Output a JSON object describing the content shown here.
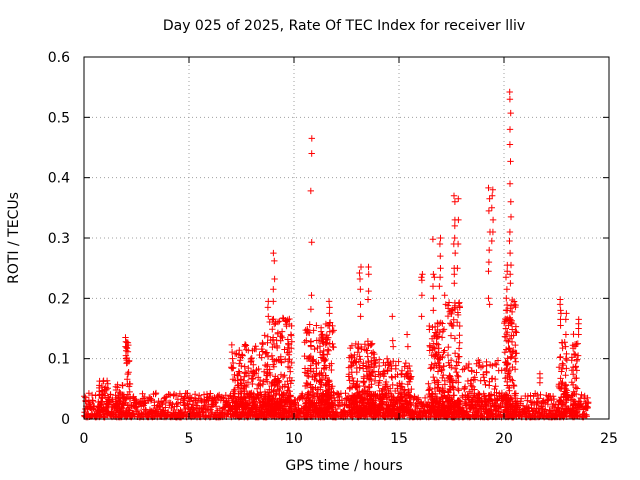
{
  "chart_data": {
    "type": "scatter",
    "title": "Day 025 of 2025, Rate Of TEC Index for receiver lliv",
    "xlabel": "GPS time / hours",
    "ylabel": "ROTI / TECUs",
    "xlim": [
      0,
      25
    ],
    "ylim": [
      0,
      0.6
    ],
    "x_ticks": [
      0,
      5,
      10,
      15,
      20,
      25
    ],
    "y_ticks": [
      0,
      0.1,
      0.2,
      0.3,
      0.4,
      0.5,
      0.6
    ],
    "x_tick_labels": [
      "0",
      "5",
      "10",
      "15",
      "20",
      "25"
    ],
    "y_tick_labels": [
      "0",
      "0.1",
      "0.2",
      "0.3",
      "0.4",
      "0.5",
      "0.6"
    ],
    "grid": true,
    "marker": "+",
    "marker_color": "#ff0000",
    "baseline": {
      "x_start": 0,
      "x_end": 24,
      "typical_max": 0.04
    },
    "clusters": [
      {
        "x_range": [
          0.7,
          1.2
        ],
        "y_max": 0.065,
        "count": 40
      },
      {
        "x_range": [
          1.5,
          1.9
        ],
        "y_max": 0.06,
        "count": 30
      },
      {
        "x_range": [
          2.0,
          2.2
        ],
        "y_max": 0.13,
        "count": 30
      },
      {
        "x_range": [
          7.0,
          8.6
        ],
        "y_max": 0.13,
        "count": 190
      },
      {
        "x_range": [
          8.6,
          9.9
        ],
        "y_max": 0.17,
        "count": 210
      },
      {
        "x_range": [
          10.5,
          11.9
        ],
        "y_max": 0.16,
        "count": 240
      },
      {
        "x_range": [
          12.6,
          13.9
        ],
        "y_max": 0.13,
        "count": 200
      },
      {
        "x_range": [
          14.0,
          15.6
        ],
        "y_max": 0.1,
        "count": 170
      },
      {
        "x_range": [
          16.4,
          17.2
        ],
        "y_max": 0.16,
        "count": 140
      },
      {
        "x_range": [
          17.3,
          17.9
        ],
        "y_max": 0.2,
        "count": 110
      },
      {
        "x_range": [
          18.0,
          19.9
        ],
        "y_max": 0.1,
        "count": 110
      },
      {
        "x_range": [
          20.0,
          20.6
        ],
        "y_max": 0.2,
        "count": 120
      },
      {
        "x_range": [
          22.6,
          23.0
        ],
        "y_max": 0.13,
        "count": 50
      },
      {
        "x_range": [
          23.2,
          23.5
        ],
        "y_max": 0.15,
        "count": 40
      }
    ],
    "spikes": [
      {
        "x": 2.0,
        "y": [
          0.135,
          0.128,
          0.12,
          0.113,
          0.105
        ]
      },
      {
        "x": 9.05,
        "y": [
          0.275,
          0.262,
          0.232,
          0.215,
          0.195
        ]
      },
      {
        "x": 8.75,
        "y": [
          0.195,
          0.185,
          0.17
        ]
      },
      {
        "x": 10.82,
        "y": [
          0.465,
          0.44,
          0.378,
          0.293,
          0.205,
          0.182
        ]
      },
      {
        "x": 11.7,
        "y": [
          0.195,
          0.185,
          0.175,
          0.16
        ]
      },
      {
        "x": 13.15,
        "y": [
          0.252,
          0.242,
          0.232,
          0.215,
          0.19,
          0.17
        ]
      },
      {
        "x": 13.55,
        "y": [
          0.252,
          0.24,
          0.212,
          0.198
        ]
      },
      {
        "x": 14.7,
        "y": [
          0.17,
          0.13,
          0.12
        ]
      },
      {
        "x": 15.4,
        "y": [
          0.14,
          0.12
        ]
      },
      {
        "x": 16.1,
        "y": [
          0.24,
          0.235,
          0.23,
          0.205,
          0.17
        ]
      },
      {
        "x": 16.65,
        "y": [
          0.298,
          0.24,
          0.235,
          0.22,
          0.2,
          0.18
        ]
      },
      {
        "x": 16.95,
        "y": [
          0.3,
          0.29,
          0.27,
          0.25,
          0.235,
          0.22
        ]
      },
      {
        "x": 17.2,
        "y": [
          0.205,
          0.19
        ]
      },
      {
        "x": 17.65,
        "y": [
          0.37,
          0.36,
          0.33,
          0.32,
          0.3,
          0.29,
          0.275,
          0.25,
          0.24,
          0.225
        ]
      },
      {
        "x": 17.8,
        "y": [
          0.365,
          0.33,
          0.29,
          0.25
        ]
      },
      {
        "x": 19.3,
        "y": [
          0.383,
          0.365,
          0.345,
          0.31,
          0.28,
          0.26,
          0.245,
          0.2,
          0.19
        ]
      },
      {
        "x": 19.45,
        "y": [
          0.38,
          0.37,
          0.35,
          0.33,
          0.31,
          0.295
        ]
      },
      {
        "x": 20.3,
        "y": [
          0.542,
          0.53,
          0.507,
          0.48,
          0.455,
          0.427,
          0.39,
          0.36,
          0.335,
          0.31,
          0.295,
          0.275,
          0.255,
          0.24,
          0.225
        ]
      },
      {
        "x": 20.12,
        "y": [
          0.255,
          0.245,
          0.235,
          0.215,
          0.2,
          0.18,
          0.165,
          0.15,
          0.13,
          0.115
        ]
      },
      {
        "x": 21.7,
        "y": [
          0.075,
          0.068,
          0.06
        ]
      },
      {
        "x": 22.7,
        "y": [
          0.198,
          0.19,
          0.18,
          0.175,
          0.165,
          0.155
        ]
      },
      {
        "x": 22.95,
        "y": [
          0.175,
          0.165,
          0.14,
          0.12,
          0.1
        ]
      },
      {
        "x": 23.55,
        "y": [
          0.165,
          0.158,
          0.15,
          0.14,
          0.125,
          0.105
        ]
      }
    ]
  }
}
